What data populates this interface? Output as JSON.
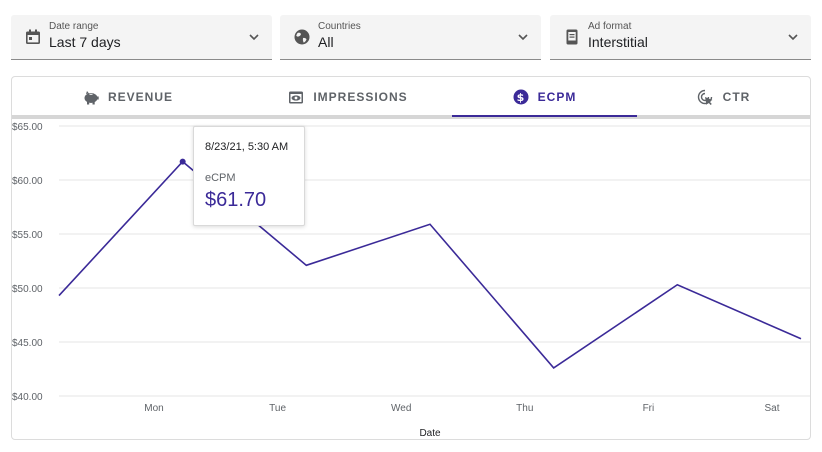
{
  "filters": [
    {
      "label": "Date range",
      "value": "Last 7 days",
      "icon": "calendar-icon"
    },
    {
      "label": "Countries",
      "value": "All",
      "icon": "globe-icon"
    },
    {
      "label": "Ad format",
      "value": "Interstitial",
      "icon": "interstitial-icon"
    }
  ],
  "tabs": [
    {
      "label": "REVENUE",
      "icon": "piggy-bank-icon",
      "active": false
    },
    {
      "label": "IMPRESSIONS",
      "icon": "eye-icon",
      "active": false
    },
    {
      "label": "ECPM",
      "icon": "dollar-circle-icon",
      "active": true
    },
    {
      "label": "CTR",
      "icon": "cursor-click-icon",
      "active": false
    }
  ],
  "colors": {
    "accent": "#3b2a98",
    "grid": "#e6e6e6",
    "axis_text": "#5f6368"
  },
  "tooltip": {
    "date": "8/23/21, 5:30 AM",
    "label": "eCPM",
    "value": "$61.70"
  },
  "chart_data": {
    "type": "line",
    "title": "",
    "xlabel": "Date",
    "ylabel": "",
    "ylim": [
      40,
      65
    ],
    "y_ticks": [
      "$65.00",
      "$60.00",
      "$55.00",
      "$50.00",
      "$45.00",
      "$40.00"
    ],
    "x_ticks": [
      "Mon",
      "Tue",
      "Wed",
      "Thu",
      "Fri",
      "Sat"
    ],
    "grid": true,
    "series": [
      {
        "values": [
          49.3,
          61.7,
          52.1,
          55.9,
          42.6,
          50.3,
          45.3
        ],
        "highlight_index": 1
      }
    ]
  }
}
